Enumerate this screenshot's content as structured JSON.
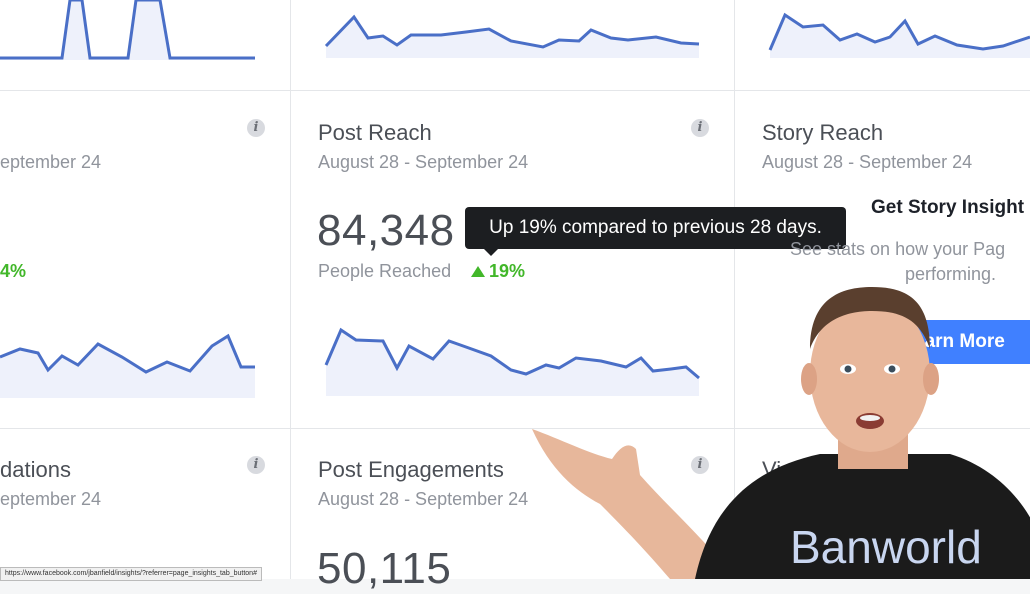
{
  "cards": {
    "left_top": {
      "date": "eptember 24",
      "pct": "4%"
    },
    "post_reach": {
      "title": "Post Reach",
      "date": "August 28 - September 24",
      "value": "84,348",
      "label": "People Reached",
      "pct": "19%",
      "tooltip": "Up 19% compared to previous 28 days."
    },
    "story_reach": {
      "title": "Story Reach",
      "date": "August 28 - September 24",
      "promo_title": "Get Story Insight",
      "promo_line1": "See stats on how your Pag",
      "promo_line2": "performing.",
      "button": "earn More"
    },
    "left_bottom": {
      "title": "dations",
      "date": "eptember 24"
    },
    "post_engagements": {
      "title": "Post Engagements",
      "date": "August 28 - September 24",
      "value": "50,115"
    },
    "right_bottom": {
      "title": "Vi"
    }
  },
  "status_bar": {
    "url": "https://www.facebook.com/jbanfield/insights/?referrer=page_insights_tab_button#"
  },
  "presenter": {
    "shirt_text": "Banworld"
  },
  "colors": {
    "accent": "#4a6fc7",
    "fill": "#eef1fb",
    "positive": "#42b72a",
    "button": "#4080ff"
  }
}
